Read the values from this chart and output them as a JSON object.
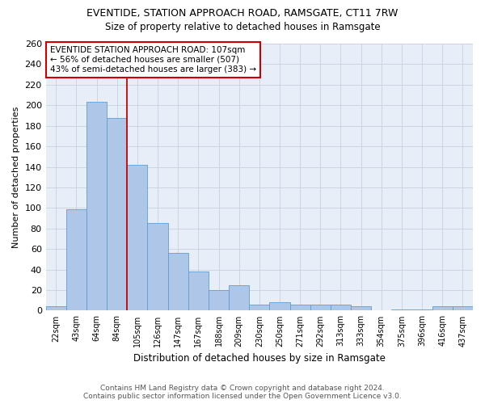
{
  "title": "EVENTIDE, STATION APPROACH ROAD, RAMSGATE, CT11 7RW",
  "subtitle": "Size of property relative to detached houses in Ramsgate",
  "xlabel": "Distribution of detached houses by size in Ramsgate",
  "ylabel": "Number of detached properties",
  "categories": [
    "22sqm",
    "43sqm",
    "64sqm",
    "84sqm",
    "105sqm",
    "126sqm",
    "147sqm",
    "167sqm",
    "188sqm",
    "209sqm",
    "230sqm",
    "250sqm",
    "271sqm",
    "292sqm",
    "313sqm",
    "333sqm",
    "354sqm",
    "375sqm",
    "396sqm",
    "416sqm",
    "437sqm"
  ],
  "values": [
    4,
    99,
    203,
    188,
    142,
    85,
    56,
    38,
    20,
    25,
    6,
    8,
    6,
    6,
    6,
    4,
    0,
    1,
    1,
    4,
    4
  ],
  "bar_color": "#aec6e8",
  "bar_edge_color": "#5a9fd4",
  "reference_line_x": 3.5,
  "reference_line_color": "#cc0000",
  "annotation_text": "EVENTIDE STATION APPROACH ROAD: 107sqm\n← 56% of detached houses are smaller (507)\n43% of semi-detached houses are larger (383) →",
  "annotation_box_color": "#ffffff",
  "annotation_box_edge_color": "#cc0000",
  "ylim": [
    0,
    260
  ],
  "yticks": [
    0,
    20,
    40,
    60,
    80,
    100,
    120,
    140,
    160,
    180,
    200,
    220,
    240,
    260
  ],
  "bg_color": "#e8eef8",
  "footer_line1": "Contains HM Land Registry data © Crown copyright and database right 2024.",
  "footer_line2": "Contains public sector information licensed under the Open Government Licence v3.0."
}
